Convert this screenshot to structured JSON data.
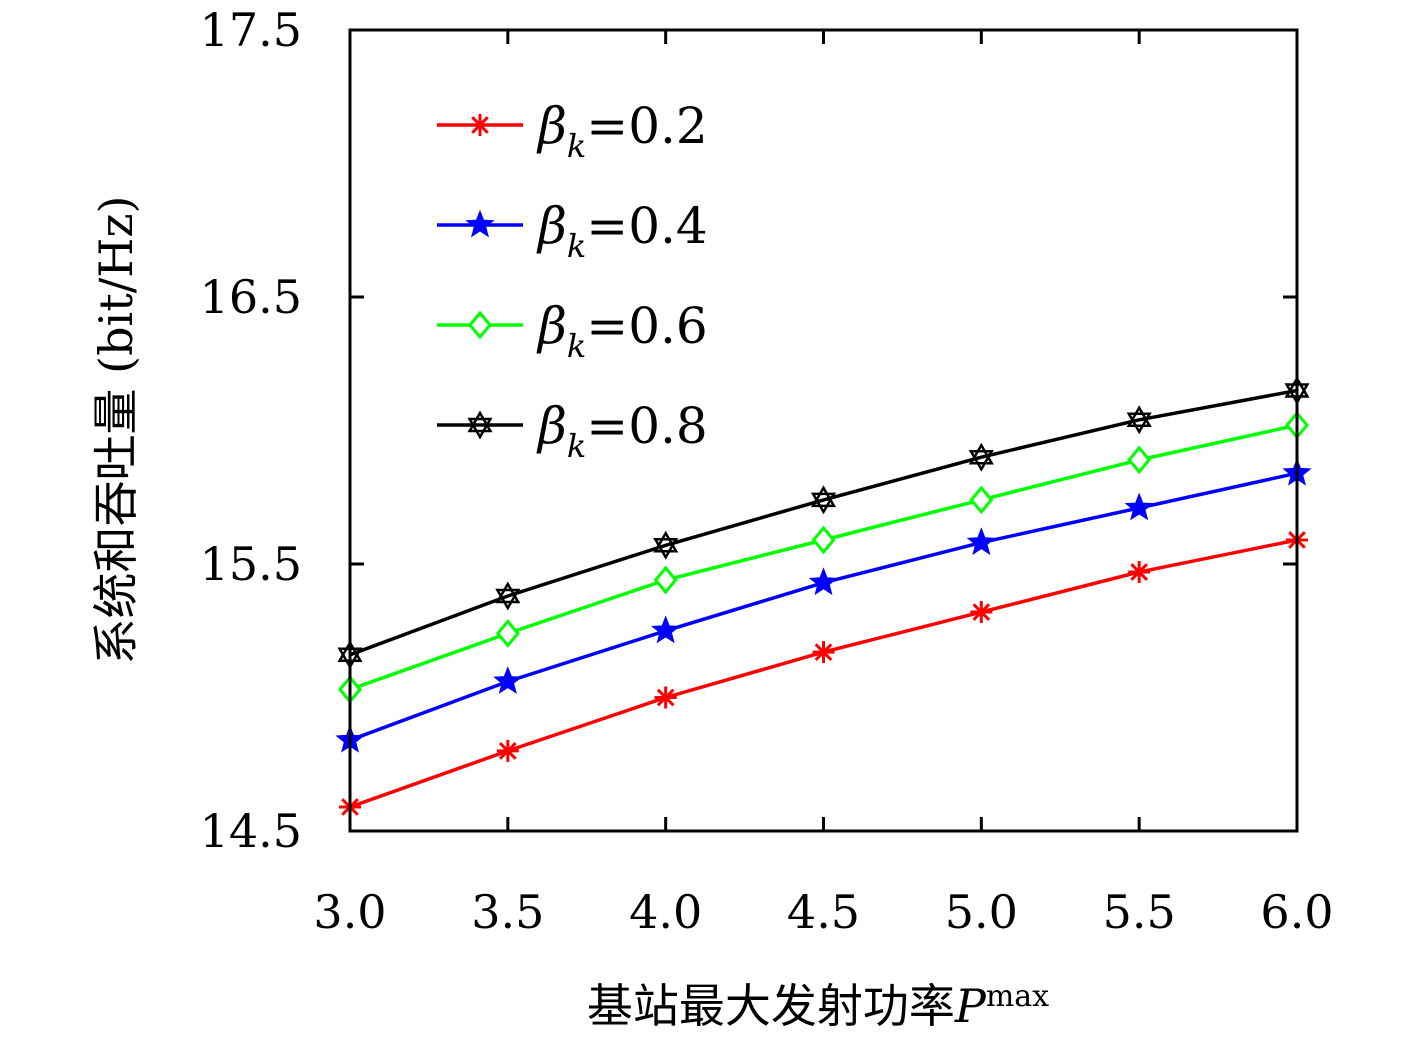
{
  "chart_data": {
    "type": "line",
    "xlabel": "基站最大发射功率",
    "xlabel_symbol": "P",
    "xlabel_symbol_sup": "max",
    "ylabel": "系统和吞吐量 (bit/Hz)",
    "xlim": [
      3.0,
      6.0
    ],
    "ylim": [
      14.5,
      17.5
    ],
    "x_ticks": [
      "3.0",
      "3.5",
      "4.0",
      "4.5",
      "5.0",
      "5.5",
      "6.0"
    ],
    "y_ticks": [
      "14.5",
      "15.5",
      "16.5",
      "17.5"
    ],
    "x": [
      3.0,
      3.5,
      4.0,
      4.5,
      5.0,
      5.5,
      6.0
    ],
    "grid": false,
    "legend_position": "top-left",
    "series": [
      {
        "name": "β_k=0.2",
        "legend_symbol": "β",
        "legend_sub": "k",
        "legend_rest": "=0.2",
        "color": "#ff0000",
        "marker": "asterisk",
        "values": [
          14.59,
          14.8,
          15.0,
          15.17,
          15.32,
          15.47,
          15.59
        ]
      },
      {
        "name": "β_k=0.4",
        "legend_symbol": "β",
        "legend_sub": "k",
        "legend_rest": "=0.4",
        "color": "#0000ff",
        "marker": "star-filled",
        "values": [
          14.84,
          15.06,
          15.25,
          15.43,
          15.58,
          15.71,
          15.84
        ]
      },
      {
        "name": "β_k=0.6",
        "legend_symbol": "β",
        "legend_sub": "k",
        "legend_rest": "=0.6",
        "color": "#00ff00",
        "marker": "diamond",
        "values": [
          15.03,
          15.24,
          15.44,
          15.59,
          15.74,
          15.89,
          16.02
        ]
      },
      {
        "name": "β_k=0.8",
        "legend_symbol": "β",
        "legend_sub": "k",
        "legend_rest": "=0.8",
        "color": "#000000",
        "marker": "hexagram",
        "values": [
          15.16,
          15.38,
          15.57,
          15.74,
          15.9,
          16.04,
          16.15
        ]
      }
    ]
  }
}
